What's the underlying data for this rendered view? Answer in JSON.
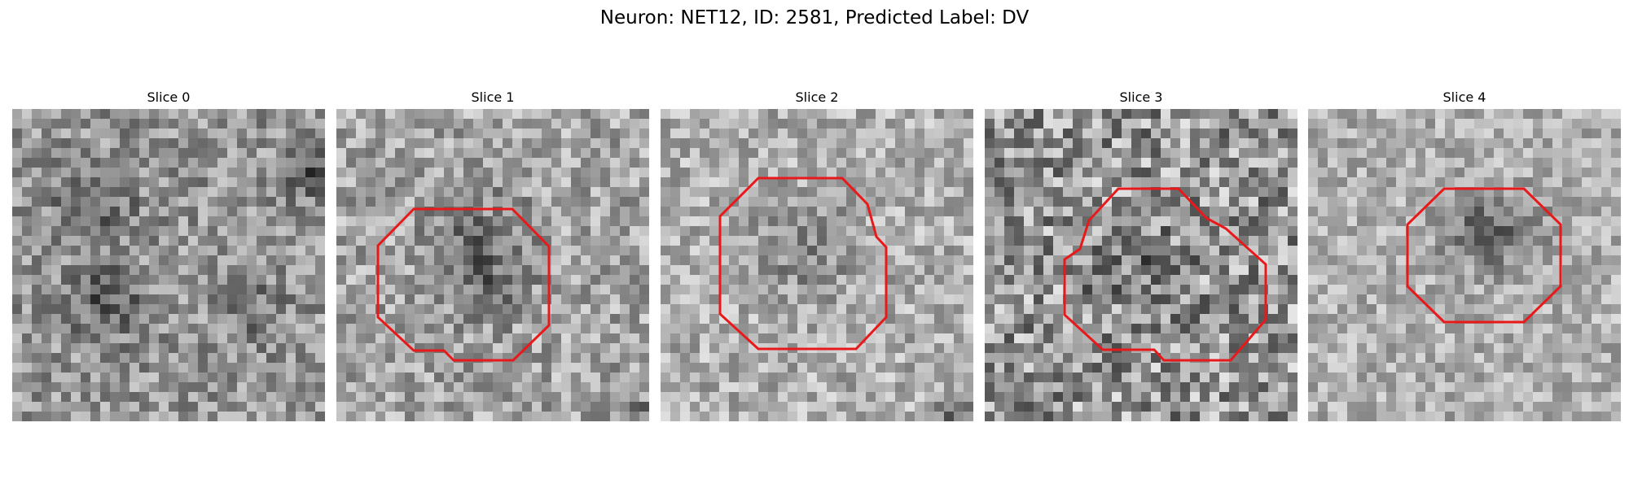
{
  "figure": {
    "title": "Neuron: NET12, ID: 2581, Predicted Label: DV"
  },
  "panels": [
    {
      "title": "Slice 0",
      "image": "grayscale-microscopy-patch",
      "roi": false
    },
    {
      "title": "Slice 1",
      "image": "grayscale-microscopy-patch",
      "roi": true
    },
    {
      "title": "Slice 2",
      "image": "grayscale-microscopy-patch",
      "roi": true
    },
    {
      "title": "Slice 3",
      "image": "grayscale-microscopy-patch",
      "roi": true
    },
    {
      "title": "Slice 4",
      "image": "grayscale-microscopy-patch",
      "roi": true
    }
  ],
  "colors": {
    "roi_outline": "#e8191b",
    "background": "#ffffff"
  }
}
